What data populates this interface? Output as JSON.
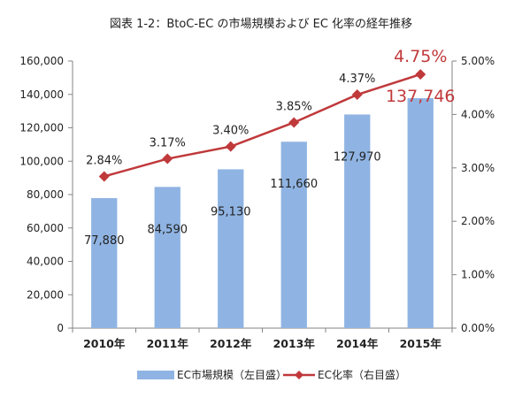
{
  "chart_data": {
    "type": "bar",
    "title": "図表 1-2：BtoC-EC の市場規模および EC 化率の経年推移",
    "categories": [
      "2010年",
      "2011年",
      "2012年",
      "2013年",
      "2014年",
      "2015年"
    ],
    "series": [
      {
        "name": "EC市場規模（左目盛）",
        "type": "bar",
        "axis": "left",
        "color": "#8fb4e3",
        "values": [
          77880,
          84590,
          95130,
          111660,
          127970,
          137746
        ],
        "labels": [
          "77,880",
          "84,590",
          "95,130",
          "111,660",
          "127,970",
          "137,746"
        ]
      },
      {
        "name": "EC化率（右目盛）",
        "type": "line",
        "axis": "right",
        "color": "#c0393b",
        "values": [
          2.84,
          3.17,
          3.4,
          3.85,
          4.37,
          4.75
        ],
        "labels": [
          "2.84%",
          "3.17%",
          "3.40%",
          "3.85%",
          "4.37%",
          "4.75%"
        ]
      }
    ],
    "y_left": {
      "ylim": [
        0,
        160000
      ],
      "ticks": [
        0,
        20000,
        40000,
        60000,
        80000,
        100000,
        120000,
        140000,
        160000
      ],
      "tick_labels": [
        "0",
        "20,000",
        "40,000",
        "60,000",
        "80,000",
        "100,000",
        "120,000",
        "140,000",
        "160,000"
      ]
    },
    "y_right": {
      "ylim": [
        0,
        5
      ],
      "ticks": [
        0,
        1,
        2,
        3,
        4,
        5
      ],
      "tick_labels": [
        "0.00%",
        "1.00%",
        "2.00%",
        "3.00%",
        "4.00%",
        "5.00%"
      ]
    },
    "grid": false,
    "legend_position": "bottom",
    "highlight_color": "#c0393b"
  }
}
